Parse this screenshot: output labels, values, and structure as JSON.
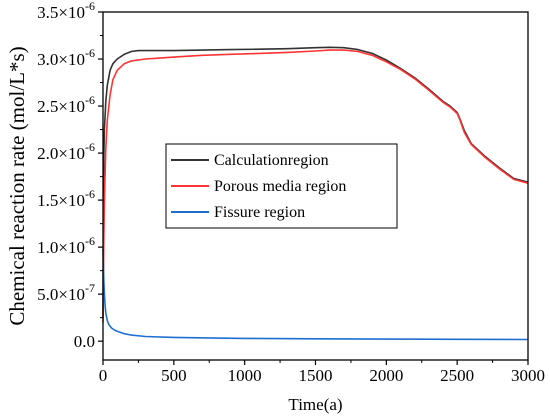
{
  "chart_data": {
    "type": "line",
    "xlabel": "Time(a)",
    "ylabel": "Chemical reaction rate (mol/L*s)",
    "xlim": [
      0,
      3000
    ],
    "ylim": [
      -2e-07,
      3.5e-06
    ],
    "x_ticks": [
      0,
      500,
      1000,
      1500,
      2000,
      2500,
      3000
    ],
    "x_tick_labels": [
      "0",
      "500",
      "1000",
      "1500",
      "2000",
      "2500",
      "3000"
    ],
    "y_ticks": [
      0,
      5e-07,
      1e-06,
      1.5e-06,
      2e-06,
      2.5e-06,
      3e-06,
      3.5e-06
    ],
    "y_tick_labels": [
      {
        "mantissa": "0.0",
        "exponent": ""
      },
      {
        "mantissa": "5.0×10",
        "exponent": "-7"
      },
      {
        "mantissa": "1.0×10",
        "exponent": "-6"
      },
      {
        "mantissa": "1.5×10",
        "exponent": "-6"
      },
      {
        "mantissa": "2.0×10",
        "exponent": "-6"
      },
      {
        "mantissa": "2.5×10",
        "exponent": "-6"
      },
      {
        "mantissa": "3.0×10",
        "exponent": "-6"
      },
      {
        "mantissa": "3.5×10",
        "exponent": "-6"
      }
    ],
    "grid": false,
    "legend_position": "center-left",
    "series": [
      {
        "name": "Calculationregion",
        "color": "#333333",
        "x": [
          0,
          5,
          10,
          20,
          30,
          50,
          70,
          100,
          150,
          200,
          250,
          300,
          400,
          500,
          700,
          900,
          1100,
          1300,
          1500,
          1600,
          1700,
          1800,
          1900,
          2000,
          2100,
          2200,
          2300,
          2400,
          2450,
          2500,
          2520,
          2550,
          2600,
          2700,
          2800,
          2900,
          3000
        ],
        "y": [
          2.5e-07,
          1.9e-06,
          2.25e-06,
          2.55e-06,
          2.72e-06,
          2.88e-06,
          2.95e-06,
          3e-06,
          3.05e-06,
          3.08e-06,
          3.09e-06,
          3.09e-06,
          3.09e-06,
          3.09e-06,
          3.095e-06,
          3.1e-06,
          3.105e-06,
          3.11e-06,
          3.12e-06,
          3.125e-06,
          3.12e-06,
          3.1e-06,
          3.06e-06,
          2.99e-06,
          2.9e-06,
          2.8e-06,
          2.68e-06,
          2.55e-06,
          2.5e-06,
          2.43e-06,
          2.36e-06,
          2.24e-06,
          2.1e-06,
          1.96e-06,
          1.84e-06,
          1.73e-06,
          1.69e-06
        ]
      },
      {
        "name": "Porous media region",
        "color": "#ff3333",
        "x": [
          0,
          5,
          10,
          20,
          30,
          50,
          70,
          100,
          150,
          200,
          300,
          400,
          500,
          700,
          900,
          1100,
          1300,
          1500,
          1600,
          1700,
          1800,
          1900,
          2000,
          2100,
          2200,
          2300,
          2400,
          2450,
          2500,
          2520,
          2550,
          2600,
          2700,
          2800,
          2900,
          3000
        ],
        "y": [
          2e-07,
          1e-06,
          1.5e-06,
          2.05e-06,
          2.35e-06,
          2.62e-06,
          2.78e-06,
          2.88e-06,
          2.95e-06,
          2.98e-06,
          3e-06,
          3.01e-06,
          3.02e-06,
          3.04e-06,
          3.05e-06,
          3.06e-06,
          3.07e-06,
          3.085e-06,
          3.095e-06,
          3.095e-06,
          3.08e-06,
          3.04e-06,
          2.97e-06,
          2.89e-06,
          2.79e-06,
          2.67e-06,
          2.54e-06,
          2.49e-06,
          2.42e-06,
          2.35e-06,
          2.22e-06,
          2.09e-06,
          1.95e-06,
          1.83e-06,
          1.72e-06,
          1.68e-06
        ]
      },
      {
        "name": "Fissure region",
        "color": "#1f6fd1",
        "x": [
          0,
          3,
          6,
          10,
          15,
          20,
          30,
          40,
          60,
          80,
          100,
          150,
          200,
          300,
          500,
          800,
          1000,
          1500,
          2000,
          2500,
          3000
        ],
        "y": [
          9.8e-07,
          8e-07,
          6.5e-07,
          5e-07,
          3.8e-07,
          3e-07,
          2.2e-07,
          1.8e-07,
          1.4e-07,
          1.2e-07,
          1.05e-07,
          8e-08,
          6.5e-08,
          5e-08,
          4e-08,
          3.3e-08,
          3e-08,
          2.5e-08,
          2.2e-08,
          2e-08,
          1.8e-08
        ]
      }
    ]
  }
}
